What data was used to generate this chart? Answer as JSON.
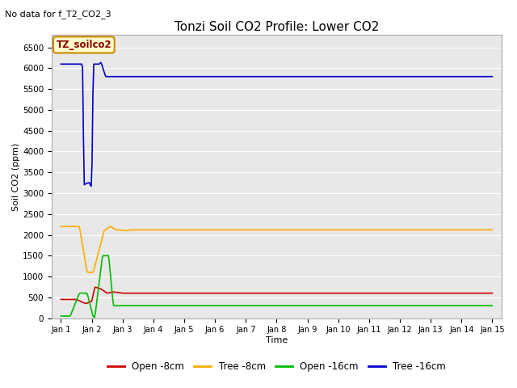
{
  "title": "Tonzi Soil CO2 Profile: Lower CO2",
  "subtitle": "No data for f_T2_CO2_3",
  "xlabel": "Time",
  "ylabel": "Soil CO2 (ppm)",
  "ylim": [
    0,
    6800
  ],
  "yticks": [
    0,
    500,
    1000,
    1500,
    2000,
    2500,
    3000,
    3500,
    4000,
    4500,
    5000,
    5500,
    6000,
    6500
  ],
  "legend_labels": [
    "Open -8cm",
    "Tree -8cm",
    "Open -16cm",
    "Tree -16cm"
  ],
  "legend_colors": [
    "#cc0000",
    "#ffaa00",
    "#00bb00",
    "#0000cc"
  ],
  "box_label": "TZ_soilco2",
  "box_facecolor": "#ffffcc",
  "box_edgecolor": "#cc8800",
  "plot_facecolor": "#e8e8e8",
  "fig_facecolor": "#ffffff",
  "grid_color": "#ffffff",
  "num_points": 500
}
